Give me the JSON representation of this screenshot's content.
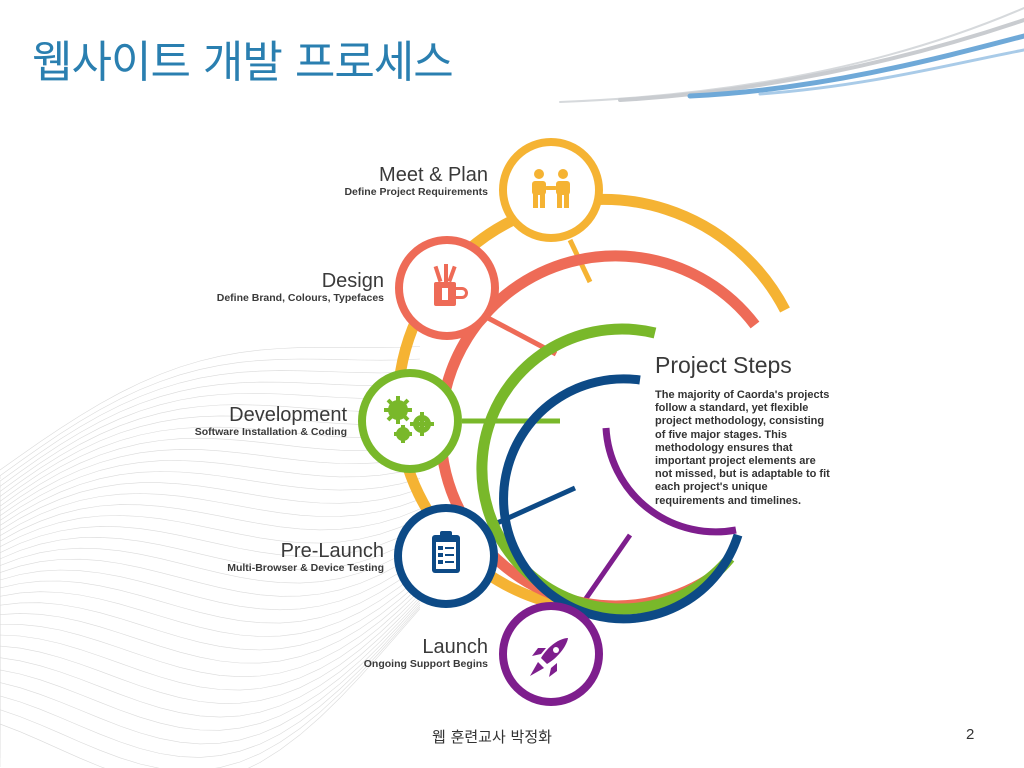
{
  "slide": {
    "title": "웹사이트 개발 프로세스",
    "author": "웹 훈련교사 박정화",
    "page_number": "2"
  },
  "colors": {
    "title": "#2a7fb0",
    "meet": "#f5b333",
    "design": "#ee6b57",
    "development": "#79b82a",
    "prelaunch": "#0d4a86",
    "launch": "#7e1e8d"
  },
  "steps": [
    {
      "title": "Meet & Plan",
      "subtitle": "Define Project Requirements",
      "icon": "people-handshake-icon"
    },
    {
      "title": "Design",
      "subtitle": "Define Brand, Colours, Typefaces",
      "icon": "pencil-cup-icon"
    },
    {
      "title": "Development",
      "subtitle": "Software Installation & Coding",
      "icon": "gears-icon"
    },
    {
      "title": "Pre-Launch",
      "subtitle": "Multi-Browser & Device Testing",
      "icon": "clipboard-checklist-icon"
    },
    {
      "title": "Launch",
      "subtitle": "Ongoing Support Begins",
      "icon": "rocket-icon"
    }
  ],
  "panel": {
    "title": "Project Steps",
    "body": "The majority of Caorda's projects follow a standard, yet flexible project methodology, consisting of five major stages. This methodology ensures that important project elements are not missed, but is adaptable to fit each project's unique requirements and timelines."
  }
}
